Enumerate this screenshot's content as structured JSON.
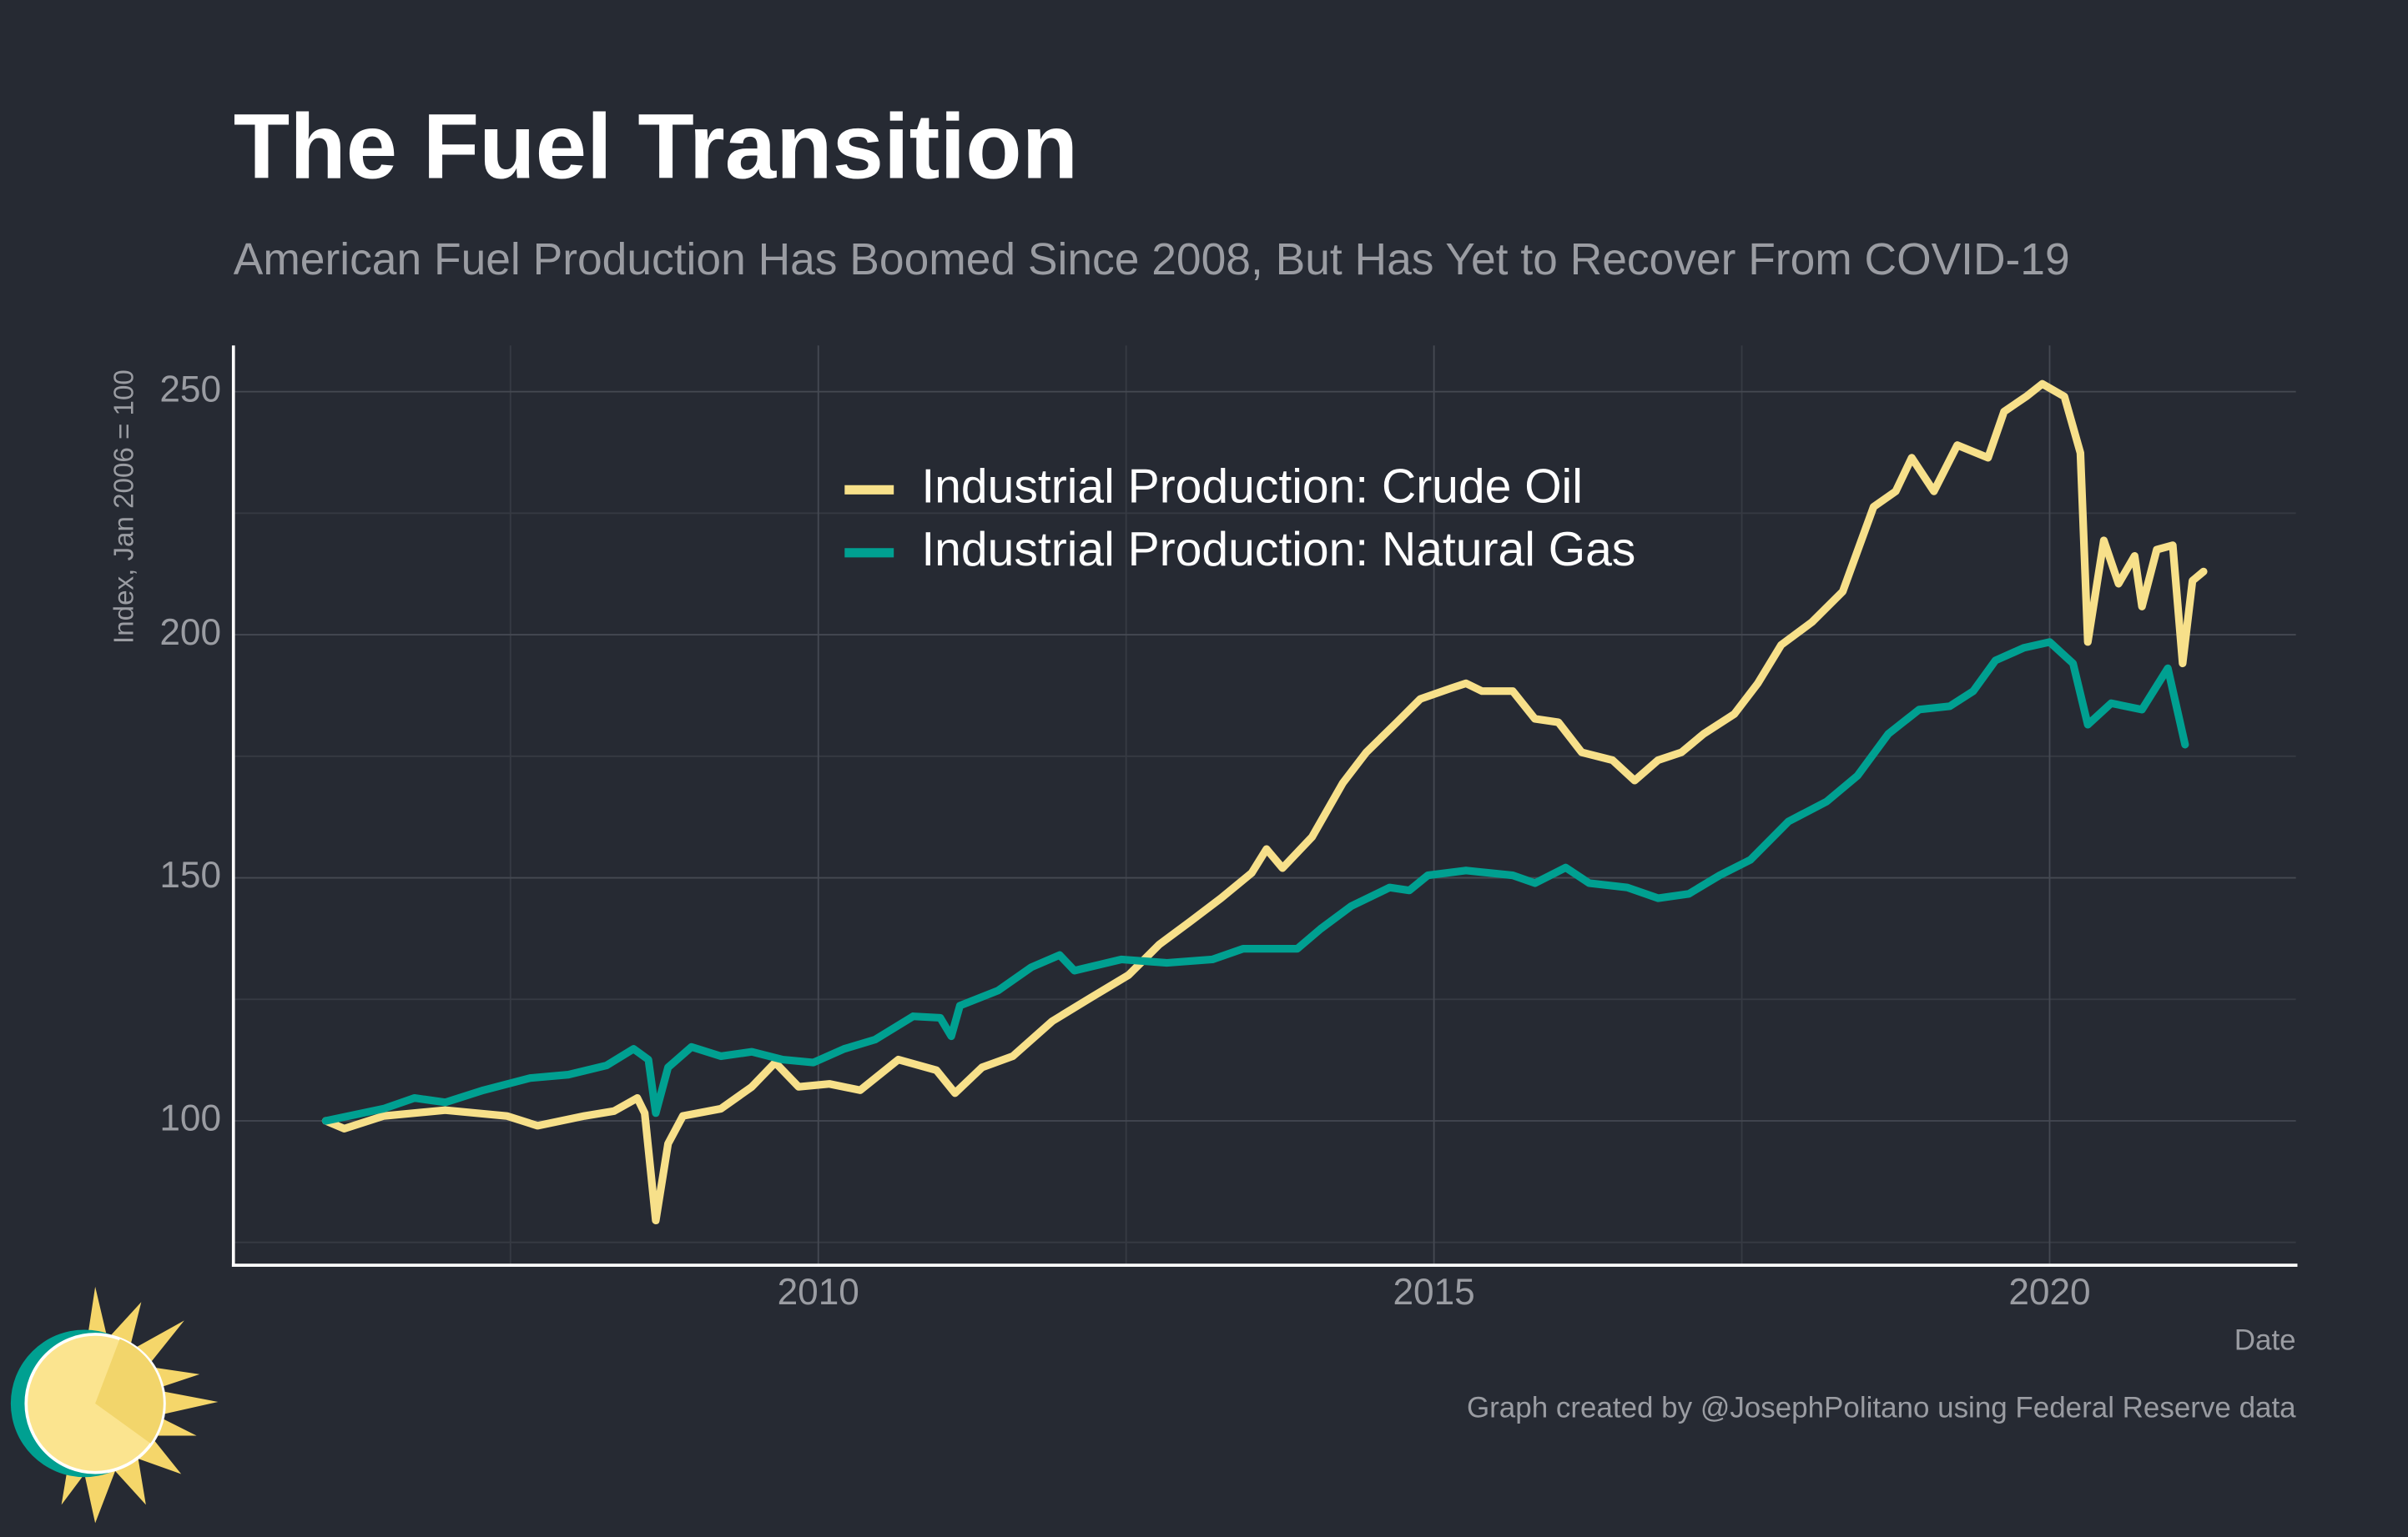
{
  "chart_data": {
    "type": "line",
    "title": "The Fuel Transition",
    "subtitle": "American Fuel Production Has Boomed Since 2008, But Has Yet to Recover From COVID-19",
    "y_label": "Index, Jan 2006 = 100",
    "x_label": "Date",
    "caption": "Graph created by @JosephPolitano using Federal Reserve data",
    "xlim": [
      2005.25,
      2022.0
    ],
    "xticks": [
      2010,
      2015,
      2020
    ],
    "x_minor_ticks": [
      2007.5,
      2012.5,
      2017.5
    ],
    "ylim": [
      70.3,
      259.5
    ],
    "yticks": [
      100,
      150,
      200,
      250
    ],
    "y_minor_ticks": [
      75,
      125,
      175,
      225
    ],
    "grid": true,
    "legend": "top",
    "series": [
      {
        "name": "Industrial Production: Crude Oil",
        "color": "#f7e08a",
        "x": [
          2006.0,
          2006.15,
          2006.47,
          2006.97,
          2007.47,
          2007.72,
          2008.1,
          2008.34,
          2008.53,
          2008.59,
          2008.68,
          2008.78,
          2008.9,
          2009.21,
          2009.46,
          2009.65,
          2009.84,
          2010.09,
          2010.34,
          2010.65,
          2010.96,
          2011.11,
          2011.33,
          2011.58,
          2011.9,
          2012.21,
          2012.52,
          2012.77,
          2013.02,
          2013.27,
          2013.52,
          2013.64,
          2013.77,
          2014.01,
          2014.26,
          2014.45,
          2014.7,
          2014.89,
          2015.14,
          2015.26,
          2015.39,
          2015.64,
          2015.82,
          2016.01,
          2016.2,
          2016.45,
          2016.63,
          2016.82,
          2017.01,
          2017.19,
          2017.44,
          2017.63,
          2017.82,
          2018.07,
          2018.32,
          2018.57,
          2018.75,
          2018.88,
          2019.06,
          2019.25,
          2019.5,
          2019.63,
          2019.81,
          2019.94,
          2020.12,
          2020.25,
          2020.31,
          2020.44,
          2020.56,
          2020.69,
          2020.75,
          2020.87,
          2021.0,
          2021.08,
          2021.16,
          2021.25
        ],
        "values": [
          100,
          98.4,
          101,
          102.2,
          101,
          99,
          101,
          102,
          104.7,
          101.6,
          79.5,
          95.3,
          101,
          102.5,
          107,
          112,
          107,
          107.6,
          106.3,
          112.6,
          110.4,
          105.7,
          111,
          113.3,
          120.5,
          125.3,
          130,
          136.3,
          141,
          145.8,
          151,
          155.9,
          152,
          158.4,
          169.5,
          175.8,
          182,
          186.8,
          189,
          190,
          188.4,
          188.4,
          182.7,
          182,
          175.8,
          174.2,
          170,
          174.2,
          175.8,
          179.6,
          183.7,
          190,
          197.9,
          202.6,
          208.9,
          226.3,
          229.5,
          236.4,
          229.5,
          239,
          236.4,
          245.9,
          249,
          251.6,
          249,
          237.4,
          198.5,
          219.4,
          210.5,
          216.2,
          205.8,
          217.5,
          218.4,
          194.1,
          211.1,
          213
        ]
      },
      {
        "name": "Industrial Production: Natural Gas",
        "color": "#00a091",
        "x": [
          2006.0,
          2006.47,
          2006.72,
          2006.97,
          2007.28,
          2007.66,
          2007.97,
          2008.28,
          2008.5,
          2008.62,
          2008.68,
          2008.78,
          2008.97,
          2009.21,
          2009.46,
          2009.71,
          2009.96,
          2010.21,
          2010.46,
          2010.77,
          2010.99,
          2011.08,
          2011.15,
          2011.46,
          2011.73,
          2011.96,
          2012.08,
          2012.46,
          2012.83,
          2013.2,
          2013.45,
          2013.89,
          2014.08,
          2014.33,
          2014.64,
          2014.8,
          2014.95,
          2015.26,
          2015.64,
          2015.82,
          2016.07,
          2016.26,
          2016.57,
          2016.82,
          2017.07,
          2017.32,
          2017.57,
          2017.88,
          2018.19,
          2018.44,
          2018.69,
          2018.94,
          2019.19,
          2019.38,
          2019.56,
          2019.79,
          2020.0,
          2020.19,
          2020.31,
          2020.5,
          2020.75,
          2020.96,
          2021.1
        ],
        "values": [
          100,
          102.5,
          104.7,
          103.8,
          106.3,
          108.8,
          109.5,
          111.4,
          114.8,
          112.6,
          101.6,
          111,
          115.2,
          113.3,
          114.2,
          112.6,
          112,
          114.8,
          116.7,
          121.5,
          121.2,
          117.4,
          123.7,
          126.8,
          131.6,
          134.1,
          130.9,
          133.2,
          132.5,
          133.2,
          135.4,
          135.4,
          139.5,
          144.2,
          148,
          147.4,
          150.5,
          151.5,
          150.5,
          148.9,
          152.1,
          148.9,
          148,
          145.8,
          146.7,
          150.5,
          153.7,
          161.6,
          165.7,
          171,
          179.6,
          184.6,
          185.3,
          188.4,
          194.7,
          197.3,
          198.5,
          194.1,
          181.5,
          185.9,
          184.6,
          193.1,
          177.4
        ]
      }
    ]
  }
}
